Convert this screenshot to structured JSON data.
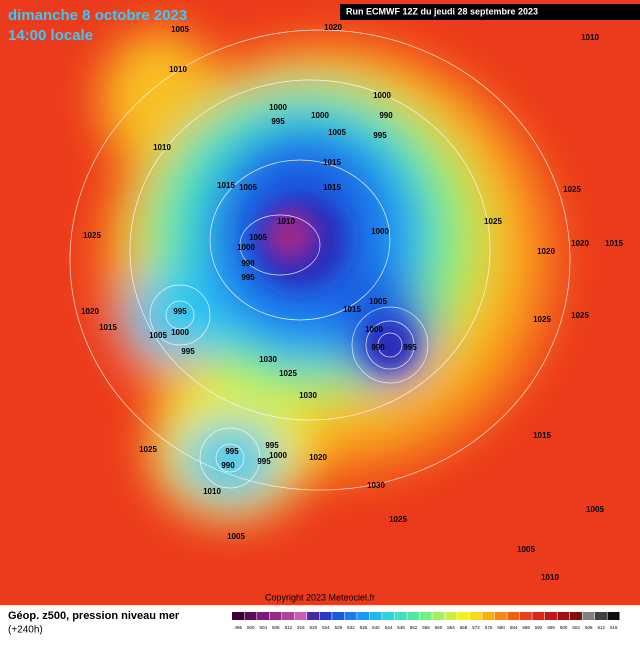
{
  "header": {
    "date": "dimanche 8 octobre 2023",
    "time": "14:00 locale",
    "run": "Run ECMWF 12Z du jeudi 28 septembre 2023"
  },
  "footer": {
    "caption": "Géop. z500, pression niveau mer",
    "lead": "(+240h)",
    "copyright": "Copyright 2023 Meteociel.fr"
  },
  "scale": {
    "labels": [
      496,
      500,
      504,
      508,
      512,
      516,
      520,
      524,
      528,
      532,
      536,
      540,
      544,
      548,
      552,
      556,
      560,
      564,
      568,
      572,
      576,
      580,
      584,
      588,
      592,
      596,
      600,
      604,
      608,
      612,
      616
    ],
    "colors": [
      "#3a0033",
      "#5a0a5a",
      "#7a1a7a",
      "#9a2a8a",
      "#b040a0",
      "#c860b8",
      "#4a2aa0",
      "#2a3ac8",
      "#1a5ae0",
      "#1a7af0",
      "#1a9af8",
      "#20b8f0",
      "#30d0e0",
      "#40e0c0",
      "#50e8a0",
      "#70f080",
      "#a0f060",
      "#d0f040",
      "#f0f020",
      "#f8d818",
      "#f8b010",
      "#f88810",
      "#f06010",
      "#e84018",
      "#d82818",
      "#c01818",
      "#a01010",
      "#801010",
      "#808080",
      "#404040",
      "#101010"
    ]
  },
  "pressures": [
    1005,
    1020,
    1010,
    1010,
    1000,
    1000,
    995,
    1000,
    990,
    1005,
    995,
    1010,
    1015,
    1015,
    1005,
    1015,
    1025,
    1025,
    1010,
    1005,
    1000,
    1025,
    1000,
    990,
    995,
    1020,
    1020,
    1015,
    995,
    1020,
    1015,
    1015,
    1000,
    1005,
    1005,
    1000,
    990,
    995,
    1030,
    1025,
    1030,
    995,
    1025,
    995,
    995,
    1000,
    995,
    990,
    1020,
    1010,
    1030,
    1025,
    1005,
    1005,
    1010,
    1015,
    1005,
    1025,
    1025
  ]
}
